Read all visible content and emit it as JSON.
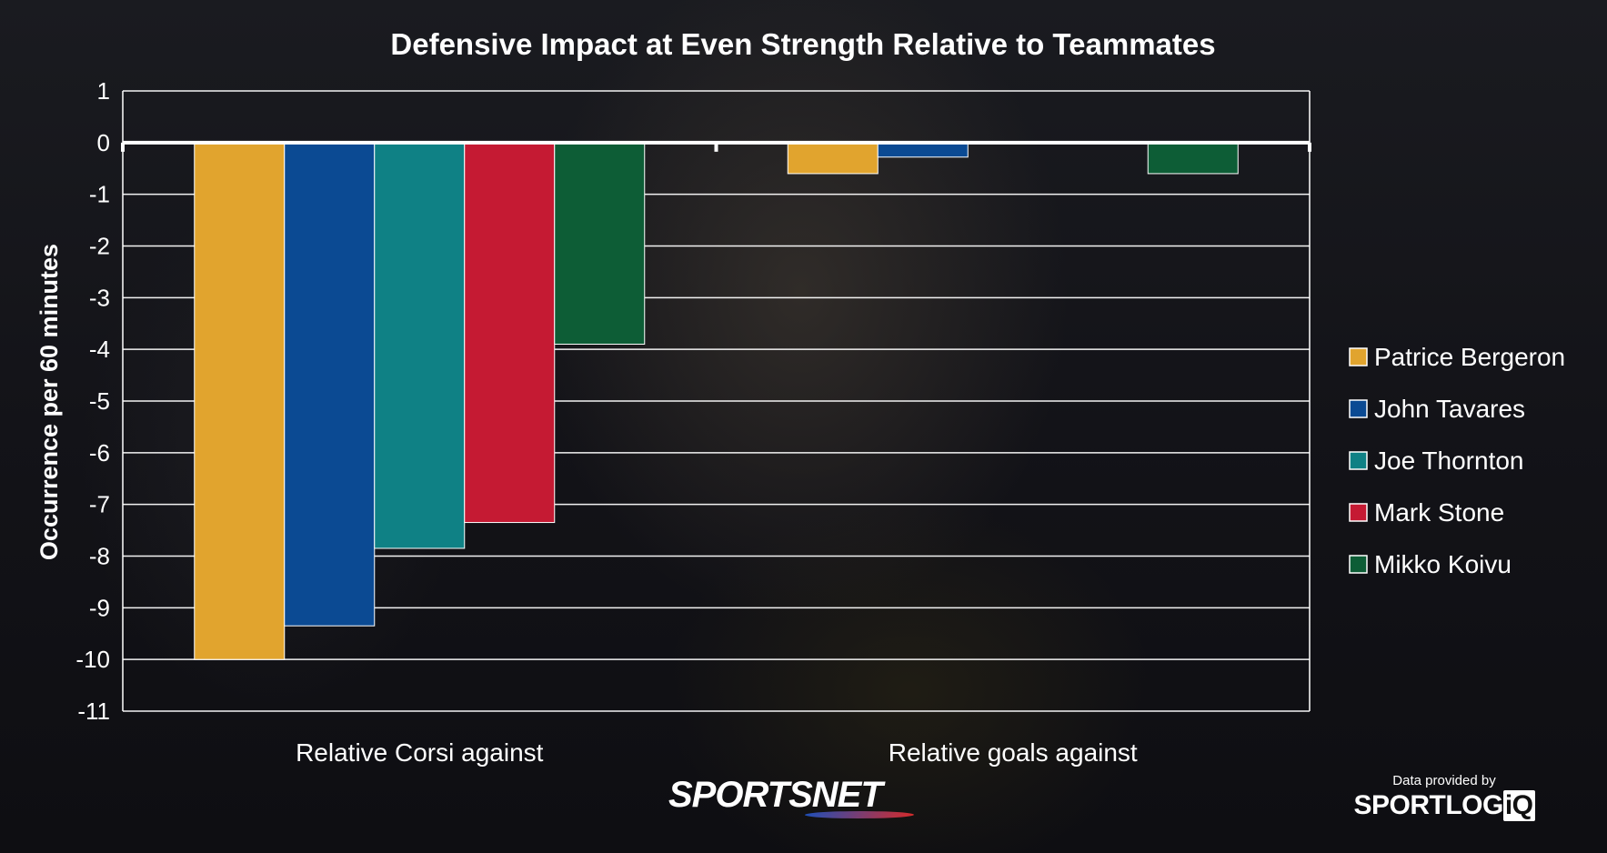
{
  "chart_data": {
    "type": "bar",
    "title": "Defensive Impact at Even Strength Relative to Teammates",
    "xlabel": "",
    "ylabel": "Occurrence per 60 minutes",
    "categories": [
      "Relative Corsi against",
      "Relative goals against"
    ],
    "ylim": [
      -11,
      1
    ],
    "yticks": [
      1,
      0,
      -1,
      -2,
      -3,
      -4,
      -5,
      -6,
      -7,
      -8,
      -9,
      -10,
      -11
    ],
    "grid": true,
    "legend_position": "right",
    "series": [
      {
        "name": "Patrice Bergeron",
        "color": "#e1a42e",
        "values": [
          -10.0,
          -0.6
        ]
      },
      {
        "name": "John Tavares",
        "color": "#0b4a93",
        "values": [
          -9.35,
          -0.28
        ]
      },
      {
        "name": "Joe Thornton",
        "color": "#0f8185",
        "values": [
          -7.85,
          0.0
        ]
      },
      {
        "name": "Mark Stone",
        "color": "#c51a33",
        "values": [
          -7.35,
          0.0
        ]
      },
      {
        "name": "Mikko Koivu",
        "color": "#0d5d36",
        "values": [
          -3.9,
          -0.6
        ]
      }
    ]
  },
  "branding": {
    "sportsnet": "SPORTSNET",
    "provided_by": "Data provided by",
    "sportlogiq_main": "SPORTLOG",
    "sportlogiq_iq": "iQ"
  }
}
